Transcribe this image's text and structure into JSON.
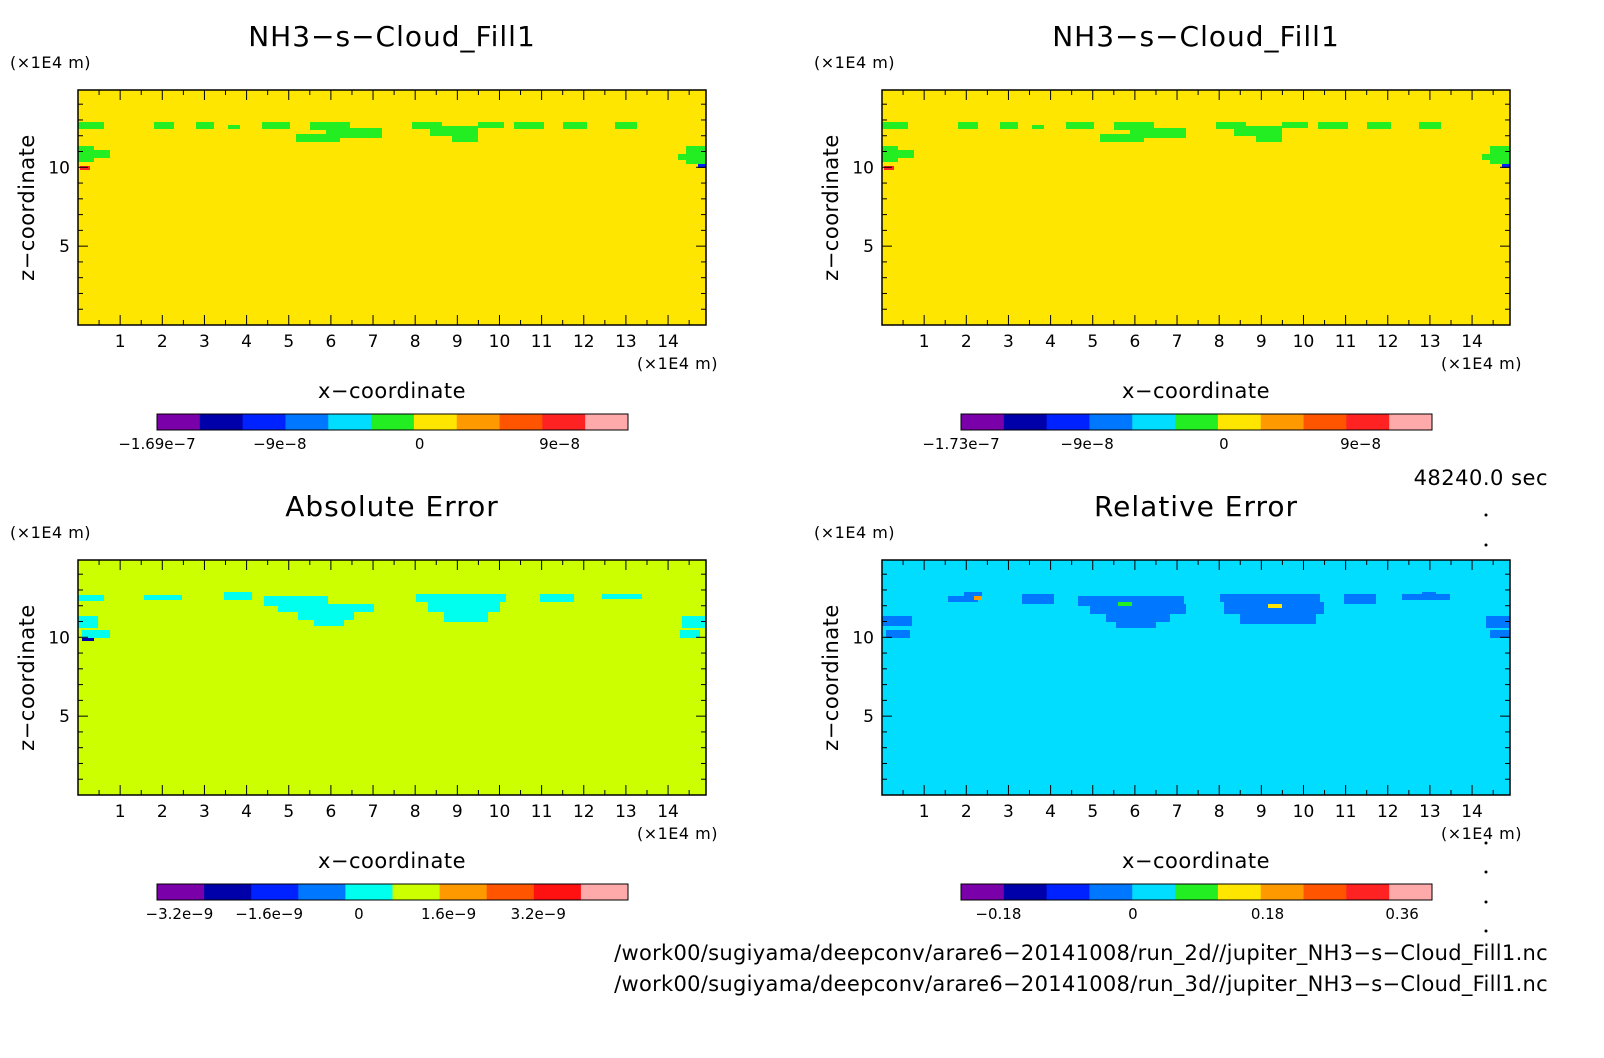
{
  "chart_data": [
    {
      "type": "heatmap",
      "title": "NH3−s−Cloud_Fill1",
      "xlabel": "x−coordinate",
      "ylabel": "z−coordinate",
      "x_unit": "(×1E4 m)",
      "y_unit": "(×1E4 m)",
      "xlim": [
        0,
        14.9
      ],
      "ylim": [
        0,
        14.9
      ],
      "x_ticks": [
        "1",
        "2",
        "3",
        "4",
        "5",
        "6",
        "7",
        "8",
        "9",
        "10",
        "11",
        "12",
        "13",
        "14"
      ],
      "y_ticks": [
        "5",
        "10"
      ],
      "background_color": "#ffe600",
      "colorbar": {
        "colors": [
          "#7a00aa",
          "#0000aa",
          "#0022ff",
          "#0077ff",
          "#00ddff",
          "#22ee22",
          "#ffe600",
          "#ff9900",
          "#ff5500",
          "#ff2222",
          "#ffaaaa"
        ],
        "tick_labels": [
          "−1.69e−7",
          "−9e−8",
          "0",
          "9e−8"
        ],
        "tick_values": [
          -1.69e-07,
          -9e-08,
          0,
          9e-08
        ],
        "range": [
          -1.69e-07,
          1.34e-07
        ]
      }
    },
    {
      "type": "heatmap",
      "title": "NH3−s−Cloud_Fill1",
      "xlabel": "x−coordinate",
      "ylabel": "z−coordinate",
      "x_unit": "(×1E4 m)",
      "y_unit": "(×1E4 m)",
      "xlim": [
        0,
        14.9
      ],
      "ylim": [
        0,
        14.9
      ],
      "x_ticks": [
        "1",
        "2",
        "3",
        "4",
        "5",
        "6",
        "7",
        "8",
        "9",
        "10",
        "11",
        "12",
        "13",
        "14"
      ],
      "y_ticks": [
        "5",
        "10"
      ],
      "background_color": "#ffe600",
      "colorbar": {
        "colors": [
          "#7a00aa",
          "#0000aa",
          "#0022ff",
          "#0077ff",
          "#00ddff",
          "#22ee22",
          "#ffe600",
          "#ff9900",
          "#ff5500",
          "#ff2222",
          "#ffaaaa"
        ],
        "tick_labels": [
          "−1.73e−7",
          "−9e−8",
          "0",
          "9e−8"
        ],
        "tick_values": [
          -1.73e-07,
          -9e-08,
          0,
          9e-08
        ],
        "range": [
          -1.73e-07,
          1.37e-07
        ]
      }
    },
    {
      "type": "heatmap",
      "title": "Absolute Error",
      "xlabel": "x−coordinate",
      "ylabel": "z−coordinate",
      "x_unit": "(×1E4 m)",
      "y_unit": "(×1E4 m)",
      "xlim": [
        0,
        14.9
      ],
      "ylim": [
        0,
        14.9
      ],
      "x_ticks": [
        "1",
        "2",
        "3",
        "4",
        "5",
        "6",
        "7",
        "8",
        "9",
        "10",
        "11",
        "12",
        "13",
        "14"
      ],
      "y_ticks": [
        "5",
        "10"
      ],
      "background_color": "#ccff00",
      "colorbar": {
        "colors": [
          "#7a00aa",
          "#0000aa",
          "#0022ff",
          "#0077ff",
          "#00ffee",
          "#ccff00",
          "#ff9900",
          "#ff5500",
          "#ff1111",
          "#ffaaaa"
        ],
        "tick_labels": [
          "−3.2e−9",
          "−1.6e−9",
          "0",
          "1.6e−9",
          "3.2e−9"
        ],
        "tick_values": [
          -3.2e-09,
          -1.6e-09,
          0,
          1.6e-09,
          3.2e-09
        ],
        "range": [
          -3.6e-09,
          4.8e-09
        ]
      }
    },
    {
      "type": "heatmap",
      "title": "Relative Error",
      "xlabel": "x−coordinate",
      "ylabel": "z−coordinate",
      "x_unit": "(×1E4 m)",
      "y_unit": "(×1E4 m)",
      "xlim": [
        0,
        14.9
      ],
      "ylim": [
        0,
        14.9
      ],
      "x_ticks": [
        "1",
        "2",
        "3",
        "4",
        "5",
        "6",
        "7",
        "8",
        "9",
        "10",
        "11",
        "12",
        "13",
        "14"
      ],
      "y_ticks": [
        "5",
        "10"
      ],
      "background_color": "#00ddff",
      "colorbar": {
        "colors": [
          "#7a00aa",
          "#0000aa",
          "#0022ff",
          "#0077ff",
          "#00ddff",
          "#22ee22",
          "#ffe600",
          "#ff9900",
          "#ff5500",
          "#ff2222",
          "#ffaaaa"
        ],
        "tick_labels": [
          "−0.18",
          "0",
          "0.18",
          "0.36"
        ],
        "tick_values": [
          -0.18,
          0,
          0.18,
          0.36
        ],
        "range": [
          -0.23,
          0.4
        ]
      }
    }
  ],
  "time_label": "48240.0 sec",
  "files": [
    "/work00/sugiyama/deepconv/arare6−20141008/run_2d//jupiter_NH3−s−Cloud_Fill1.nc",
    "/work00/sugiyama/deepconv/arare6−20141008/run_3d//jupiter_NH3−s−Cloud_Fill1.nc"
  ]
}
